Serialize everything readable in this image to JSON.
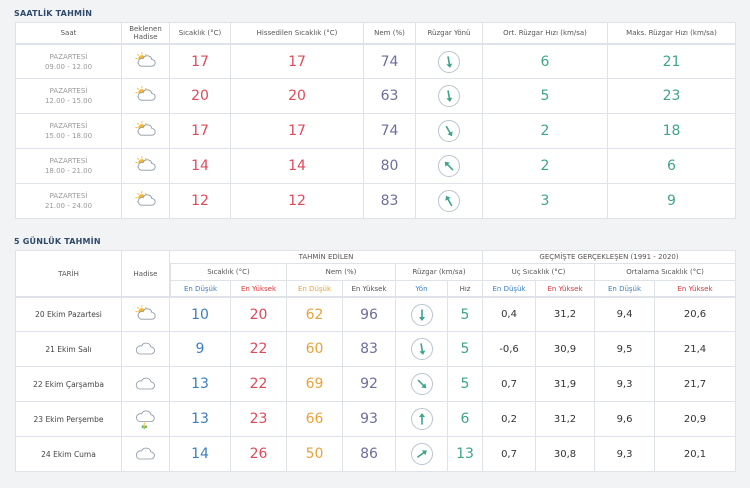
{
  "hourly": {
    "title": "SAATLİK TAHMİN",
    "headers": {
      "saat": "Saat",
      "hadise": "Beklenen Hadise",
      "sicaklik": "Sıcaklık (°C)",
      "hissedilen": "Hissedilen Sıcaklık (°C)",
      "nem": "Nem (%)",
      "yon": "Rüzgar Yönü",
      "ort": "Ort. Rüzgar Hızı (km/sa)",
      "maks": "Maks. Rüzgar Hızı (km/sa)"
    },
    "rows": [
      {
        "day": "PAZARTESİ",
        "time": "09.00 - 12.00",
        "icon": "partly-cloudy-icon",
        "temp": "17",
        "feels": "17",
        "humidity": "74",
        "wind_dir_deg": 170,
        "avg_wind": "6",
        "max_wind": "21"
      },
      {
        "day": "PAZARTESİ",
        "time": "12.00 - 15.00",
        "icon": "partly-cloudy-icon",
        "temp": "20",
        "feels": "20",
        "humidity": "63",
        "wind_dir_deg": 170,
        "avg_wind": "5",
        "max_wind": "23"
      },
      {
        "day": "PAZARTESİ",
        "time": "15.00 - 18.00",
        "icon": "partly-cloudy-icon",
        "temp": "17",
        "feels": "17",
        "humidity": "74",
        "wind_dir_deg": 150,
        "avg_wind": "2",
        "max_wind": "18"
      },
      {
        "day": "PAZARTESİ",
        "time": "18.00 - 21.00",
        "icon": "partly-cloudy-icon",
        "temp": "14",
        "feels": "14",
        "humidity": "80",
        "wind_dir_deg": 315,
        "avg_wind": "2",
        "max_wind": "6"
      },
      {
        "day": "PAZARTESİ",
        "time": "21.00 - 24.00",
        "icon": "partly-cloudy-icon",
        "temp": "12",
        "feels": "12",
        "humidity": "83",
        "wind_dir_deg": 330,
        "avg_wind": "3",
        "max_wind": "9"
      }
    ]
  },
  "daily": {
    "title": "5 GÜNLÜK TAHMİN",
    "headers": {
      "tarih": "TARİH",
      "hadise": "Hadise",
      "tahmin": "TAHMİN EDİLEN",
      "gecmis": "GEÇMİŞTE GERÇEKLEŞEN (1991 - 2020)",
      "sicaklik": "Sıcaklık (°C)",
      "nem": "Nem (%)",
      "ruzgar": "Rüzgar (km/sa)",
      "uc": "Uç Sıcaklık (°C)",
      "ortalama": "Ortalama Sıcaklık (°C)",
      "en_dusuk": "En Düşük",
      "en_yuksek": "En Yüksek",
      "yon": "Yön",
      "hiz": "Hız"
    },
    "rows": [
      {
        "date": "20 Ekim Pazartesi",
        "icon": "partly-cloudy-icon",
        "t_low": "10",
        "t_high": "20",
        "h_low": "62",
        "h_high": "96",
        "wind_dir_deg": 180,
        "wind_speed": "5",
        "ext_low": "0,4",
        "ext_high": "31,2",
        "avg_low": "9,4",
        "avg_high": "20,6"
      },
      {
        "date": "21 Ekim Salı",
        "icon": "cloudy-icon",
        "t_low": "9",
        "t_high": "22",
        "h_low": "60",
        "h_high": "83",
        "wind_dir_deg": 170,
        "wind_speed": "5",
        "ext_low": "-0,6",
        "ext_high": "30,9",
        "avg_low": "9,5",
        "avg_high": "21,4"
      },
      {
        "date": "22 Ekim Çarşamba",
        "icon": "cloudy-icon",
        "t_low": "13",
        "t_high": "22",
        "h_low": "69",
        "h_high": "92",
        "wind_dir_deg": 135,
        "wind_speed": "5",
        "ext_low": "0,7",
        "ext_high": "31,9",
        "avg_low": "9,3",
        "avg_high": "21,7"
      },
      {
        "date": "23 Ekim Perşembe",
        "icon": "rain-cloud-icon",
        "t_low": "13",
        "t_high": "23",
        "h_low": "66",
        "h_high": "93",
        "wind_dir_deg": 0,
        "wind_speed": "6",
        "ext_low": "0,2",
        "ext_high": "31,2",
        "avg_low": "9,6",
        "avg_high": "20,9"
      },
      {
        "date": "24 Ekim Cuma",
        "icon": "cloudy-icon",
        "t_low": "14",
        "t_high": "26",
        "h_low": "50",
        "h_high": "86",
        "wind_dir_deg": 55,
        "wind_speed": "13",
        "ext_low": "0,7",
        "ext_high": "30,8",
        "avg_low": "9,3",
        "avg_high": "20,1"
      }
    ]
  }
}
